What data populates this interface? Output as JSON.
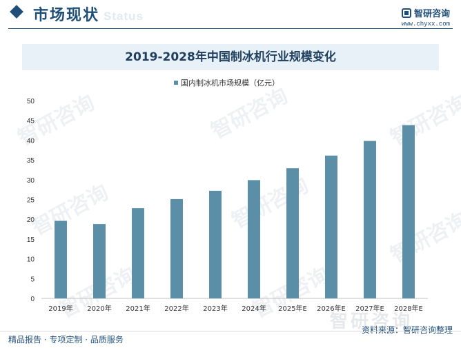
{
  "header": {
    "section_title": "市场现状",
    "section_sub": "Status",
    "brand_name": "智研咨询",
    "brand_url": "www.chyxx.com"
  },
  "watermark_text": "智研咨询",
  "footer": {
    "left": "精品报告 · 专项定制 · 品质服务",
    "right": "资料来源：智研咨询整理",
    "brand": "智研咨询"
  },
  "colors": {
    "bar": "#5b8fa8",
    "brand": "#1f4e79"
  },
  "chart_data": {
    "type": "bar",
    "title": "2019-2028年中国制冰机行业规模变化",
    "categories": [
      "2019年",
      "2020年",
      "2021年",
      "2022年",
      "2023年",
      "2024年",
      "2025年E",
      "2026年E",
      "2027年E",
      "2028年E"
    ],
    "series": [
      {
        "name": "国内制冰机市场规模（亿元）",
        "values": [
          19.6,
          18.8,
          22.8,
          25.1,
          27.2,
          29.9,
          32.9,
          36.1,
          39.8,
          43.8
        ]
      }
    ],
    "ylim": [
      0,
      50
    ],
    "yticks": [
      0,
      5,
      10,
      15,
      20,
      25,
      30,
      35,
      40,
      45,
      50
    ],
    "grid": false,
    "legend_position": "top-center",
    "xlabel": "",
    "ylabel": ""
  }
}
